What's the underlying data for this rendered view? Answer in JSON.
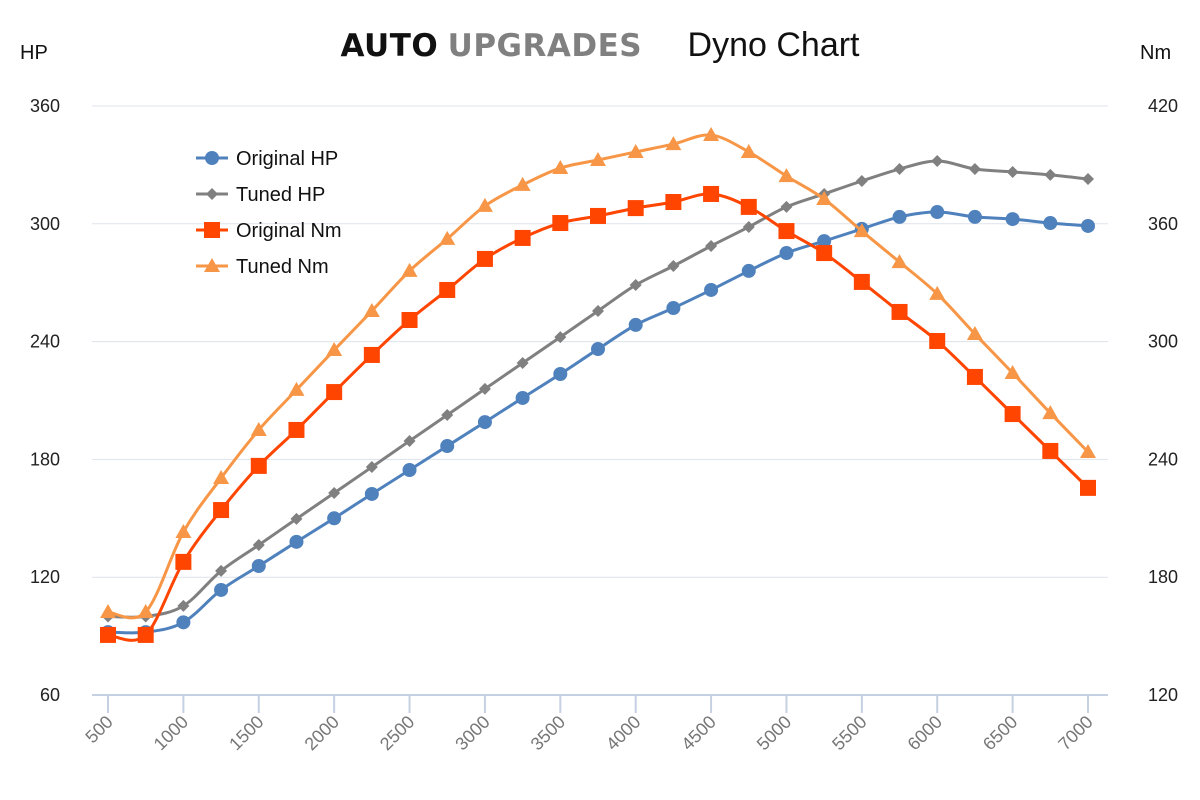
{
  "header": {
    "brand_auto": "AUTO",
    "brand_upgrades": "UPGRADES",
    "subtitle": "Dyno Chart"
  },
  "chart_data": {
    "type": "line",
    "title": "Dyno Chart",
    "ylabel_left": "HP",
    "ylabel_right": "Nm",
    "x": [
      500,
      750,
      1000,
      1250,
      1500,
      1750,
      2000,
      2250,
      2500,
      2750,
      3000,
      3250,
      3500,
      3750,
      4000,
      4250,
      4500,
      4750,
      5000,
      5250,
      5500,
      5750,
      6000,
      6250,
      6500,
      6750,
      7000
    ],
    "xticks": [
      "500",
      "1000",
      "1500",
      "2000",
      "2500",
      "3000",
      "3500",
      "4000",
      "4500",
      "5000",
      "5500",
      "6000",
      "6500",
      "7000"
    ],
    "xlim": [
      500,
      7000
    ],
    "ylim_left": [
      60,
      360
    ],
    "ylim_right": [
      120,
      420
    ],
    "yticks_left": [
      "60",
      "120",
      "180",
      "240",
      "300",
      "360"
    ],
    "yticks_right": [
      "120",
      "180",
      "240",
      "300",
      "360",
      "420"
    ],
    "grid": true,
    "legend": "top-left",
    "series": [
      {
        "name": "Original HP",
        "axis": "left",
        "color": "#4f81bd",
        "marker": "circle",
        "values": [
          92,
          92,
          97,
          113.5,
          125.7,
          138,
          150,
          162.4,
          174.6,
          186.8,
          199,
          211.3,
          223.5,
          236.2,
          248.5,
          257.1,
          266.3,
          276,
          285.1,
          291.2,
          297.4,
          303.5,
          306,
          303.5,
          302.4,
          300.4,
          298.9
        ]
      },
      {
        "name": "Tuned HP",
        "axis": "left",
        "color": "#808080",
        "marker": "diamond",
        "values": [
          100,
          100,
          105.4,
          123.2,
          136.4,
          149.7,
          162.9,
          176.1,
          189.4,
          202.6,
          215.9,
          229.1,
          242.3,
          255.6,
          268.8,
          278.5,
          288.7,
          298.4,
          308.6,
          315.2,
          321.8,
          327.9,
          332,
          327.9,
          326.4,
          324.9,
          322.8
        ]
      },
      {
        "name": "Original Nm",
        "axis": "right",
        "color": "#ff4500",
        "marker": "square",
        "values": [
          150.6,
          150.6,
          187.8,
          214.2,
          236.7,
          255,
          274.3,
          293.2,
          311,
          326.3,
          342.1,
          352.8,
          360.4,
          364,
          368,
          371.1,
          375.2,
          368.6,
          356.3,
          345.1,
          330.4,
          315.1,
          300.3,
          282,
          263.1,
          244.3,
          225.5
        ]
      },
      {
        "name": "Tuned Nm",
        "axis": "right",
        "color": "#f79646",
        "marker": "triangle",
        "values": [
          162.3,
          162.3,
          203,
          230.5,
          255,
          275.4,
          295.7,
          315.6,
          336,
          352.3,
          369.1,
          379.8,
          388.4,
          392.5,
          396.6,
          400.6,
          405.2,
          396.6,
          384.3,
          372.6,
          356.3,
          340.5,
          324.3,
          303.9,
          284,
          263.6,
          243.8
        ]
      }
    ]
  }
}
